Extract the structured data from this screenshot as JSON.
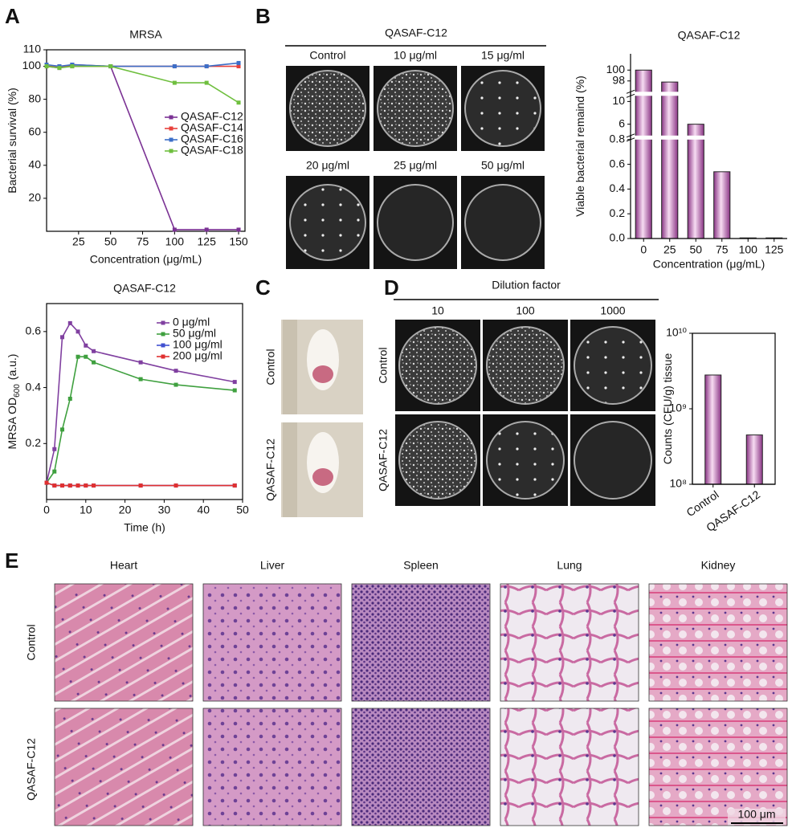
{
  "panel_labels": [
    "A",
    "B",
    "C",
    "D",
    "E"
  ],
  "chart_data": [
    {
      "type": "line",
      "title": "MRSA",
      "xlabel": "Concentration (μg/mL)",
      "ylabel": "Bacterial survival (%)",
      "x": [
        0,
        10,
        20,
        50,
        100,
        125,
        150
      ],
      "xlim": [
        0,
        155
      ],
      "xticks": [
        25,
        50,
        75,
        100,
        125,
        150
      ],
      "ylim": [
        0,
        110
      ],
      "yticks": [
        20,
        40,
        60,
        80,
        100,
        110
      ],
      "legend": true,
      "series": [
        {
          "name": "QASAF-C12",
          "color": "#7b3294",
          "values": [
            100,
            99,
            101,
            100,
            1,
            1,
            1
          ]
        },
        {
          "name": "QASAF-C14",
          "color": "#e8413c",
          "values": [
            100,
            100,
            100,
            100,
            100,
            100,
            100
          ]
        },
        {
          "name": "QASAF-C16",
          "color": "#3c6fc8",
          "values": [
            101,
            100,
            101,
            100,
            100,
            100,
            102
          ]
        },
        {
          "name": "QASAF-C18",
          "color": "#6fbf3f",
          "values": [
            100,
            99,
            100,
            100,
            90,
            90,
            78
          ]
        }
      ]
    },
    {
      "type": "line",
      "title": "QASAF-C12",
      "xlabel": "Time (h)",
      "ylabel": "MRSA OD",
      "ylabel_subscript": "600",
      "ylabel_unit": "(a.u.)",
      "x": [
        0,
        2,
        4,
        6,
        8,
        10,
        12,
        24,
        33,
        48
      ],
      "xlim": [
        0,
        50
      ],
      "xticks": [
        0,
        10,
        20,
        30,
        40,
        50
      ],
      "ylim": [
        0,
        0.7
      ],
      "yticks": [
        0.2,
        0.4,
        0.6
      ],
      "legend": true,
      "series": [
        {
          "name": "0 μg/ml",
          "color": "#8040a0",
          "values": [
            0.06,
            0.18,
            0.58,
            0.63,
            0.6,
            0.55,
            0.53,
            0.49,
            0.46,
            0.42
          ]
        },
        {
          "name": "50 μg/ml",
          "color": "#3fa03f",
          "values": [
            0.06,
            0.1,
            0.25,
            0.36,
            0.51,
            0.51,
            0.49,
            0.43,
            0.41,
            0.39
          ]
        },
        {
          "name": "100 μg/ml",
          "color": "#4050d0",
          "values": [
            0.06,
            0.05,
            0.05,
            0.05,
            0.05,
            0.05,
            0.05,
            0.05,
            0.05,
            0.05
          ]
        },
        {
          "name": "200 μg/ml",
          "color": "#e03030",
          "values": [
            0.06,
            0.05,
            0.05,
            0.05,
            0.05,
            0.05,
            0.05,
            0.05,
            0.05,
            0.05
          ]
        }
      ]
    },
    {
      "type": "bar",
      "title": "QASAF-C12",
      "xlabel": "Concentration (μg/mL)",
      "ylabel": "Viable bacterial remaind (%)",
      "categories": [
        "0",
        "25",
        "50",
        "75",
        "100",
        "125"
      ],
      "values": [
        100,
        97.8,
        6,
        0.54,
        0.005,
        0.005
      ],
      "color": "#8a3585",
      "ylim_segments": [
        [
          0,
          0.8
        ],
        [
          4,
          11
        ],
        [
          96,
          103
        ]
      ],
      "yticks": [
        {
          "value": 0,
          "label": "0.0"
        },
        0.2,
        0.4,
        0.6,
        0.8,
        6,
        10,
        98,
        100
      ]
    },
    {
      "type": "bar",
      "ylabel": "Counts (CFU/g) tissue",
      "categories": [
        "Control",
        "QASAF-C12"
      ],
      "values": [
        2800000000,
        450000000
      ],
      "color": "#8a3585",
      "log_y": true,
      "ylim": [
        100000000,
        10000000000
      ],
      "yticks": [
        {
          "value": 100000000,
          "label": "10⁸"
        },
        {
          "value": 1000000000,
          "label": "10⁹"
        },
        {
          "value": 10000000000,
          "label": "10¹⁰"
        }
      ]
    }
  ],
  "plates_b": {
    "title": "QASAF-C12",
    "labels": [
      "Control",
      "10 μg/ml",
      "15 μg/ml",
      "20 μg/ml",
      "25 μg/ml",
      "50 μg/ml"
    ]
  },
  "mice": {
    "rows": [
      "Control",
      "QASAF-C12"
    ]
  },
  "plates_d": {
    "title": "Dilution factor",
    "columns": [
      "10",
      "100",
      "1000"
    ],
    "rows": [
      "Control",
      "QASAF-C12"
    ]
  },
  "histology": {
    "columns": [
      "Heart",
      "Liver",
      "Spleen",
      "Lung",
      "Kidney"
    ],
    "rows": [
      "Control",
      "QASAF-C12"
    ],
    "scale_bar": "100 μm"
  }
}
